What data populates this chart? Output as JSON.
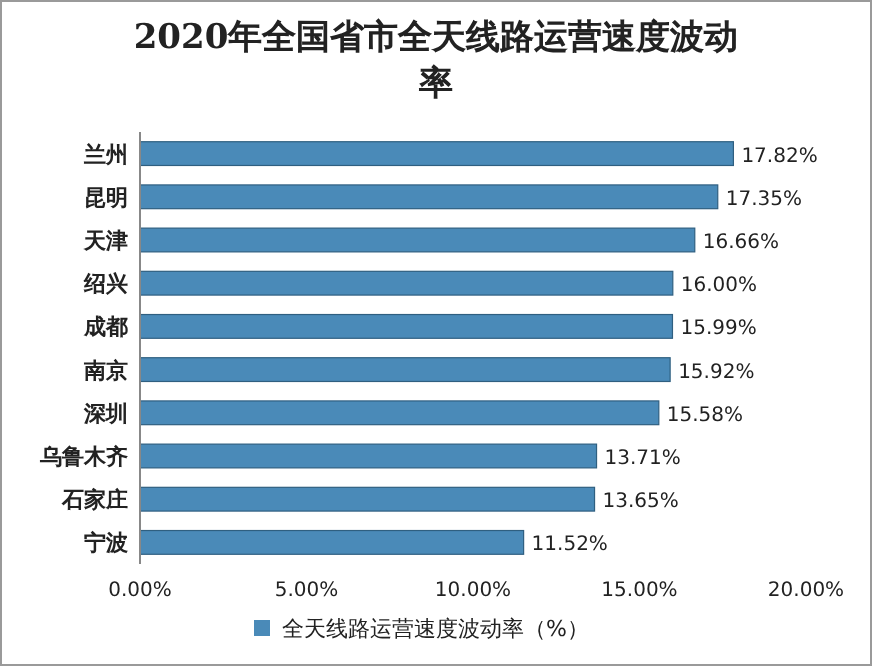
{
  "chart_data": {
    "type": "bar",
    "orientation": "horizontal",
    "title": "2020年全国省市全天线路运营速度波动率",
    "categories": [
      "兰州",
      "昆明",
      "天津",
      "绍兴",
      "成都",
      "南京",
      "深圳",
      "乌鲁木齐",
      "石家庄",
      "宁波"
    ],
    "series": [
      {
        "name": "全天线路运营速度波动率（%）",
        "color": "#4a8ab8",
        "values": [
          17.82,
          17.35,
          16.66,
          16.0,
          15.99,
          15.92,
          15.58,
          13.71,
          13.65,
          11.52
        ],
        "value_labels": [
          "17.82%",
          "17.35%",
          "16.66%",
          "16.00%",
          "15.99%",
          "15.92%",
          "15.58%",
          "13.71%",
          "13.65%",
          "11.52%"
        ]
      }
    ],
    "xlim": [
      0,
      20
    ],
    "xticks": [
      {
        "value": 0,
        "label": "0.00%"
      },
      {
        "value": 5,
        "label": "5.00%"
      },
      {
        "value": 10,
        "label": "10.00%"
      },
      {
        "value": 15,
        "label": "15.00%"
      },
      {
        "value": 20,
        "label": "20.00%"
      }
    ],
    "legend": "bottom"
  }
}
